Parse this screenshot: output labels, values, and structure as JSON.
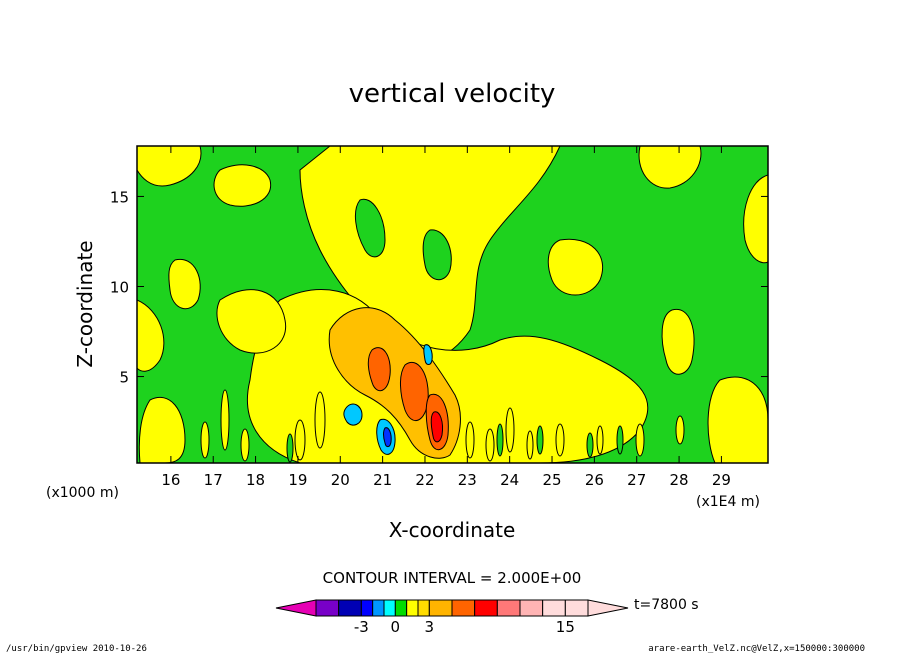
{
  "chart_data": {
    "type": "heatmap",
    "title": "vertical velocity",
    "xlabel": "X-coordinate",
    "ylabel": "Z-coordinate",
    "x_scale_note_left": "(x1000 m)",
    "x_scale_note_right": "(x1E4 m)",
    "xlim": [
      15.2,
      30.1
    ],
    "ylim": [
      0.2,
      17.8
    ],
    "x_ticks": [
      "16",
      "17",
      "18",
      "19",
      "20",
      "21",
      "22",
      "23",
      "24",
      "25",
      "26",
      "27",
      "28",
      "29"
    ],
    "y_ticks": [
      "5",
      "10",
      "15"
    ],
    "contour_interval": "CONTOUR INTERVAL = 2.000E+00",
    "time_label": "t=7800 s",
    "colorbar_tick_labels": [
      "-3",
      "0",
      "3",
      "15"
    ],
    "colorbar_levels": [
      -7,
      -5,
      -3,
      -2,
      -1,
      0,
      1,
      2,
      3,
      5,
      7,
      9,
      11,
      13,
      15,
      17
    ],
    "colors": {
      "green": "#1ed21e",
      "yellow": "#ffff00",
      "light_orange": "#ffc000",
      "orange": "#ff6400",
      "red": "#ff0000",
      "cyan": "#00c8ff",
      "blue": "#0032ff"
    },
    "colorbar_colors": [
      "#e600b4",
      "#7800c8",
      "#0000b4",
      "#0000ff",
      "#0096ff",
      "#00ffff",
      "#00dc00",
      "#ffff00",
      "#ffdc00",
      "#ffb400",
      "#ff6400",
      "#ff0000",
      "#ff7878",
      "#ffb4b4",
      "#ffdcdc"
    ],
    "grid": false,
    "legend": "bottom-center colorbar"
  },
  "footer": {
    "left": "/usr/bin/gpview  2010-10-26",
    "right": "arare-earth_VelZ.nc@VelZ,x=150000:300000"
  }
}
